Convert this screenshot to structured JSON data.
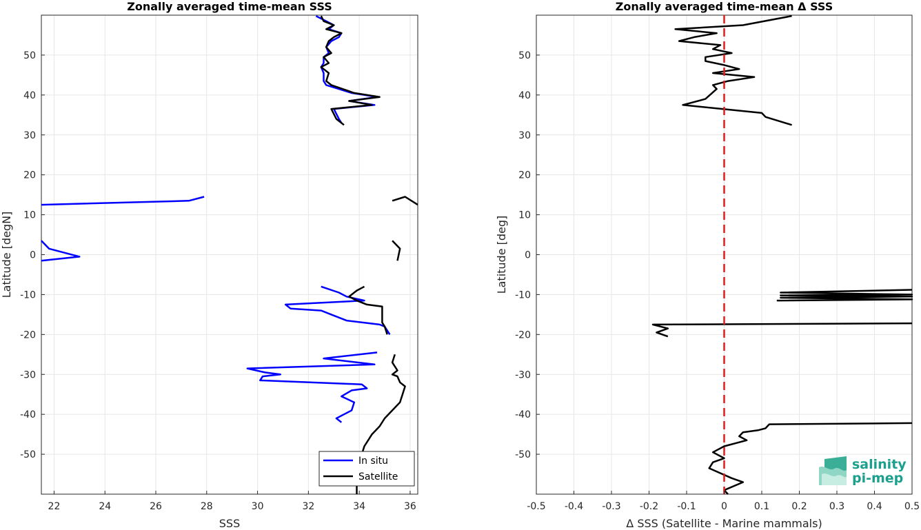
{
  "colors": {
    "insitu": "#0000ff",
    "satellite": "#000000",
    "zero_line": "#e41a1c",
    "grid": "#e6e6e6",
    "logo": "#1aa08c"
  },
  "logo": {
    "line1": "salinity",
    "line2": "pi-mep",
    "icon": "salinity-wave-icon"
  },
  "chart_data": [
    {
      "type": "line",
      "title": "Zonally averaged time-mean SSS",
      "xlabel": "SSS",
      "ylabel": "Latitude [degN]",
      "xlim": [
        21.5,
        36.3
      ],
      "ylim": [
        -60,
        60
      ],
      "xticks": [
        22,
        24,
        26,
        28,
        30,
        32,
        34,
        36
      ],
      "yticks": [
        -50,
        -40,
        -30,
        -20,
        -10,
        0,
        10,
        20,
        30,
        40,
        50
      ],
      "grid": true,
      "legend": {
        "placement": "bottom-right",
        "entries": [
          "In situ",
          "Satellite"
        ]
      },
      "series": [
        {
          "name": "In situ",
          "color": "#0000ff",
          "segments": [
            [
              [
                33.3,
                33
              ],
              [
                33.2,
                34
              ],
              [
                33.0,
                36.5
              ],
              [
                34.6,
                37.5
              ],
              [
                33.6,
                38.5
              ],
              [
                34.7,
                39.5
              ],
              [
                33.7,
                40.5
              ],
              [
                32.7,
                42.5
              ],
              [
                32.6,
                43.5
              ],
              [
                32.6,
                45.5
              ],
              [
                32.5,
                47
              ],
              [
                32.6,
                48
              ],
              [
                32.6,
                49.5
              ],
              [
                32.8,
                50.5
              ],
              [
                32.7,
                52
              ],
              [
                32.9,
                53.5
              ],
              [
                33.2,
                54.5
              ],
              [
                33.3,
                55.5
              ],
              [
                32.8,
                56.5
              ],
              [
                33.0,
                57.5
              ],
              [
                32.7,
                58.5
              ],
              [
                32.3,
                59.8
              ]
            ],
            [
              [
                21.5,
                12.5
              ],
              [
                27.3,
                13.5
              ],
              [
                27.9,
                14.5
              ]
            ],
            [
              [
                21.5,
                -1.5
              ],
              [
                23.0,
                -0.5
              ],
              [
                21.8,
                1.5
              ],
              [
                21.5,
                3.5
              ]
            ],
            [
              [
                35.2,
                -20
              ],
              [
                35.0,
                -18
              ],
              [
                34.8,
                -17.5
              ],
              [
                33.5,
                -16.5
              ],
              [
                32.9,
                -15
              ],
              [
                32.5,
                -14
              ],
              [
                31.3,
                -13.5
              ],
              [
                31.1,
                -12.5
              ],
              [
                34.2,
                -11.5
              ],
              [
                33.5,
                -10.5
              ],
              [
                33.2,
                -9.5
              ],
              [
                32.5,
                -8
              ]
            ],
            [
              [
                33.3,
                -42
              ],
              [
                33.1,
                -41
              ],
              [
                33.4,
                -40
              ],
              [
                33.7,
                -39
              ],
              [
                33.8,
                -37
              ],
              [
                33.3,
                -35.5
              ],
              [
                33.7,
                -34
              ],
              [
                34.3,
                -33.5
              ],
              [
                34.1,
                -32.5
              ],
              [
                30.1,
                -31.5
              ],
              [
                30.2,
                -30.5
              ],
              [
                30.9,
                -30
              ],
              [
                30.3,
                -29.5
              ],
              [
                29.6,
                -28.5
              ],
              [
                34.6,
                -27.5
              ],
              [
                32.6,
                -26
              ],
              [
                34.7,
                -24.5
              ]
            ]
          ]
        },
        {
          "name": "Satellite",
          "color": "#000000",
          "segments": [
            [
              [
                33.4,
                32.5
              ],
              [
                33.1,
                34
              ],
              [
                32.9,
                36.5
              ],
              [
                34.5,
                37.5
              ],
              [
                33.6,
                38.5
              ],
              [
                34.8,
                39.5
              ],
              [
                33.8,
                40.5
              ],
              [
                32.9,
                42.5
              ],
              [
                32.7,
                43.5
              ],
              [
                32.8,
                45.5
              ],
              [
                32.5,
                47
              ],
              [
                32.8,
                48
              ],
              [
                32.6,
                49.5
              ],
              [
                32.9,
                50.5
              ],
              [
                32.7,
                52
              ],
              [
                32.8,
                53.5
              ],
              [
                33.0,
                54.5
              ],
              [
                33.3,
                55.5
              ],
              [
                32.7,
                56.5
              ],
              [
                33.0,
                57.5
              ],
              [
                32.6,
                58.5
              ],
              [
                32.5,
                59.8
              ]
            ],
            [
              [
                35.3,
                13.5
              ],
              [
                35.8,
                14.5
              ],
              [
                36.3,
                12.5
              ]
            ],
            [
              [
                35.3,
                3.5
              ],
              [
                35.6,
                1.5
              ],
              [
                35.5,
                -1.5
              ]
            ],
            [
              [
                35.1,
                -20
              ],
              [
                35.0,
                -18
              ],
              [
                34.9,
                -17
              ],
              [
                34.9,
                -15
              ],
              [
                34.9,
                -13
              ],
              [
                34.3,
                -12.5
              ],
              [
                33.9,
                -11.5
              ],
              [
                33.6,
                -10.5
              ],
              [
                33.9,
                -9
              ],
              [
                34.2,
                -8
              ]
            ],
            [
              [
                33.9,
                -60
              ],
              [
                33.9,
                -57
              ],
              [
                34.0,
                -55
              ],
              [
                34.0,
                -52
              ],
              [
                34.1,
                -50
              ],
              [
                34.2,
                -48
              ],
              [
                34.5,
                -45
              ],
              [
                34.8,
                -43
              ],
              [
                35.0,
                -41
              ],
              [
                35.3,
                -39
              ],
              [
                35.6,
                -37
              ],
              [
                35.7,
                -35
              ],
              [
                35.8,
                -33
              ],
              [
                35.6,
                -32
              ],
              [
                35.5,
                -30.5
              ],
              [
                35.3,
                -30
              ],
              [
                35.5,
                -29
              ],
              [
                35.3,
                -27
              ],
              [
                35.4,
                -25
              ]
            ]
          ]
        }
      ]
    },
    {
      "type": "line",
      "title": "Zonally averaged time-mean Δ SSS",
      "xlabel": "Δ SSS (Satellite - Marine mammals)",
      "ylabel": "Latitude [deg]",
      "xlim": [
        -0.5,
        0.5
      ],
      "ylim": [
        -60,
        60
      ],
      "xticks": [
        -0.5,
        -0.4,
        -0.3,
        -0.2,
        -0.1,
        0,
        0.1,
        0.2,
        0.3,
        0.4,
        0.5
      ],
      "yticks": [
        -50,
        -40,
        -30,
        -20,
        -10,
        0,
        10,
        20,
        30,
        40,
        50
      ],
      "grid": true,
      "zero_line": {
        "x": 0,
        "style": "dashed"
      },
      "series": [
        {
          "color": "#000000",
          "segments": [
            [
              [
                0.18,
                32.5
              ],
              [
                0.11,
                34.5
              ],
              [
                0.1,
                35.5
              ],
              [
                -0.11,
                37.5
              ],
              [
                -0.05,
                39
              ],
              [
                -0.02,
                41.5
              ],
              [
                -0.03,
                42.5
              ],
              [
                0.01,
                43.5
              ],
              [
                0.08,
                44.5
              ],
              [
                -0.03,
                45.5
              ],
              [
                0.04,
                46.5
              ],
              [
                0.0,
                47.5
              ],
              [
                -0.05,
                48.5
              ],
              [
                -0.05,
                49.5
              ],
              [
                0.02,
                50.5
              ],
              [
                -0.03,
                51.5
              ],
              [
                -0.01,
                52.5
              ],
              [
                -0.12,
                53.5
              ],
              [
                -0.08,
                54.5
              ],
              [
                -0.02,
                55.5
              ],
              [
                -0.13,
                56.5
              ],
              [
                0.05,
                57.5
              ],
              [
                0.18,
                59.8
              ]
            ],
            [
              [
                0.14,
                -11.5
              ],
              [
                0.5,
                -11.2
              ],
              [
                0.15,
                -10.8
              ],
              [
                0.5,
                -10.5
              ],
              [
                0.15,
                -10.2
              ],
              [
                0.5,
                -10
              ],
              [
                0.15,
                -9.5
              ],
              [
                0.5,
                -8.8
              ]
            ],
            [
              [
                -0.15,
                -20.5
              ],
              [
                -0.18,
                -19.5
              ],
              [
                -0.15,
                -18.5
              ],
              [
                -0.19,
                -17.5
              ],
              [
                0.5,
                -17.2
              ]
            ],
            [
              [
                0.01,
                -60
              ],
              [
                0.0,
                -59
              ],
              [
                0.05,
                -57
              ],
              [
                0.02,
                -56
              ],
              [
                -0.04,
                -53.5
              ],
              [
                -0.03,
                -52
              ],
              [
                0.0,
                -51
              ],
              [
                -0.03,
                -49.5
              ],
              [
                0.0,
                -48
              ],
              [
                0.06,
                -46.5
              ],
              [
                0.04,
                -45.5
              ],
              [
                0.05,
                -44.5
              ],
              [
                0.09,
                -44
              ],
              [
                0.11,
                -43.5
              ],
              [
                0.12,
                -42.5
              ],
              [
                0.5,
                -42.2
              ]
            ]
          ]
        }
      ]
    }
  ]
}
